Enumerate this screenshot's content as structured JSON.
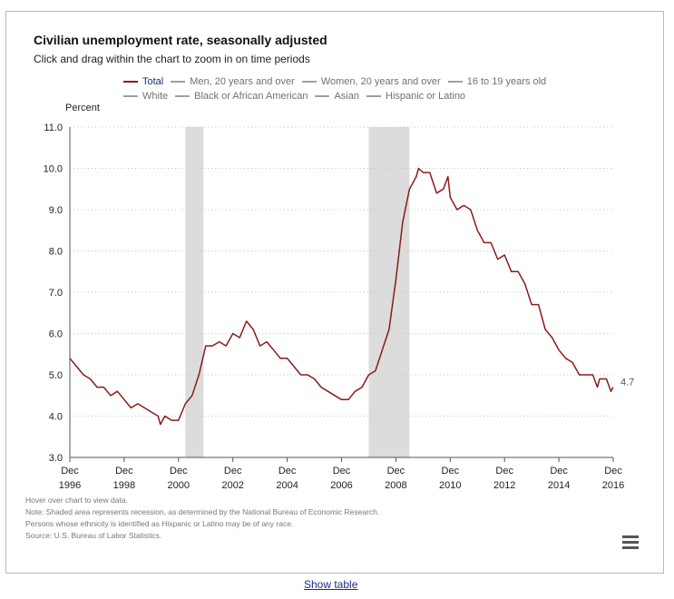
{
  "chart_data": {
    "type": "line",
    "title": "Civilian unemployment rate, seasonally adjusted",
    "subtitle": "Click and drag within the chart to zoom in on time periods",
    "ylabel": "Percent",
    "ylim": [
      3.0,
      11.0
    ],
    "yticks": [
      "3.0",
      "4.0",
      "5.0",
      "6.0",
      "7.0",
      "8.0",
      "9.0",
      "10.0",
      "11.0"
    ],
    "xticks": [
      {
        "month": "Dec",
        "year": "1996"
      },
      {
        "month": "Dec",
        "year": "1998"
      },
      {
        "month": "Dec",
        "year": "2000"
      },
      {
        "month": "Dec",
        "year": "2002"
      },
      {
        "month": "Dec",
        "year": "2004"
      },
      {
        "month": "Dec",
        "year": "2006"
      },
      {
        "month": "Dec",
        "year": "2008"
      },
      {
        "month": "Dec",
        "year": "2010"
      },
      {
        "month": "Dec",
        "year": "2012"
      },
      {
        "month": "Dec",
        "year": "2014"
      },
      {
        "month": "Dec",
        "year": "2016"
      }
    ],
    "grid": true,
    "legend_placement": "top",
    "legend": [
      {
        "name": "Total",
        "active": true
      },
      {
        "name": "Men, 20 years and over",
        "active": false
      },
      {
        "name": "Women, 20 years and over",
        "active": false
      },
      {
        "name": "16 to 19 years old",
        "active": false
      },
      {
        "name": "White",
        "active": false
      },
      {
        "name": "Black or African American",
        "active": false
      },
      {
        "name": "Asian",
        "active": false
      },
      {
        "name": "Hispanic or Latino",
        "active": false
      }
    ],
    "recessions": [
      {
        "start": "2001-03",
        "end": "2001-11"
      },
      {
        "start": "2007-12",
        "end": "2009-06"
      }
    ],
    "end_label": "4.7",
    "series": [
      {
        "name": "Total",
        "color": "#8b1a1a",
        "points": [
          [
            "1996-12",
            5.4
          ],
          [
            "1997-03",
            5.2
          ],
          [
            "1997-06",
            5.0
          ],
          [
            "1997-09",
            4.9
          ],
          [
            "1997-12",
            4.7
          ],
          [
            "1998-03",
            4.7
          ],
          [
            "1998-06",
            4.5
          ],
          [
            "1998-09",
            4.6
          ],
          [
            "1998-12",
            4.4
          ],
          [
            "1999-03",
            4.2
          ],
          [
            "1999-06",
            4.3
          ],
          [
            "1999-09",
            4.2
          ],
          [
            "1999-12",
            4.1
          ],
          [
            "2000-03",
            4.0
          ],
          [
            "2000-04",
            3.8
          ],
          [
            "2000-06",
            4.0
          ],
          [
            "2000-09",
            3.9
          ],
          [
            "2000-12",
            3.9
          ],
          [
            "2001-03",
            4.3
          ],
          [
            "2001-06",
            4.5
          ],
          [
            "2001-09",
            5.0
          ],
          [
            "2001-12",
            5.7
          ],
          [
            "2002-03",
            5.7
          ],
          [
            "2002-06",
            5.8
          ],
          [
            "2002-09",
            5.7
          ],
          [
            "2002-12",
            6.0
          ],
          [
            "2003-03",
            5.9
          ],
          [
            "2003-06",
            6.3
          ],
          [
            "2003-09",
            6.1
          ],
          [
            "2003-12",
            5.7
          ],
          [
            "2004-03",
            5.8
          ],
          [
            "2004-06",
            5.6
          ],
          [
            "2004-09",
            5.4
          ],
          [
            "2004-12",
            5.4
          ],
          [
            "2005-03",
            5.2
          ],
          [
            "2005-06",
            5.0
          ],
          [
            "2005-09",
            5.0
          ],
          [
            "2005-12",
            4.9
          ],
          [
            "2006-03",
            4.7
          ],
          [
            "2006-06",
            4.6
          ],
          [
            "2006-09",
            4.5
          ],
          [
            "2006-12",
            4.4
          ],
          [
            "2007-03",
            4.4
          ],
          [
            "2007-06",
            4.6
          ],
          [
            "2007-09",
            4.7
          ],
          [
            "2007-12",
            5.0
          ],
          [
            "2008-03",
            5.1
          ],
          [
            "2008-06",
            5.6
          ],
          [
            "2008-09",
            6.1
          ],
          [
            "2008-12",
            7.3
          ],
          [
            "2009-03",
            8.7
          ],
          [
            "2009-06",
            9.5
          ],
          [
            "2009-09",
            9.8
          ],
          [
            "2009-10",
            10.0
          ],
          [
            "2009-12",
            9.9
          ],
          [
            "2010-03",
            9.9
          ],
          [
            "2010-06",
            9.4
          ],
          [
            "2010-09",
            9.5
          ],
          [
            "2010-11",
            9.8
          ],
          [
            "2010-12",
            9.3
          ],
          [
            "2011-03",
            9.0
          ],
          [
            "2011-06",
            9.1
          ],
          [
            "2011-09",
            9.0
          ],
          [
            "2011-12",
            8.5
          ],
          [
            "2012-03",
            8.2
          ],
          [
            "2012-06",
            8.2
          ],
          [
            "2012-09",
            7.8
          ],
          [
            "2012-12",
            7.9
          ],
          [
            "2013-03",
            7.5
          ],
          [
            "2013-06",
            7.5
          ],
          [
            "2013-09",
            7.2
          ],
          [
            "2013-12",
            6.7
          ],
          [
            "2014-03",
            6.7
          ],
          [
            "2014-06",
            6.1
          ],
          [
            "2014-09",
            5.9
          ],
          [
            "2014-12",
            5.6
          ],
          [
            "2015-03",
            5.4
          ],
          [
            "2015-06",
            5.3
          ],
          [
            "2015-09",
            5.0
          ],
          [
            "2015-12",
            5.0
          ],
          [
            "2016-03",
            5.0
          ],
          [
            "2016-05",
            4.7
          ],
          [
            "2016-06",
            4.9
          ],
          [
            "2016-09",
            4.9
          ],
          [
            "2016-11",
            4.6
          ],
          [
            "2016-12",
            4.7
          ]
        ]
      }
    ]
  },
  "notes": [
    "Hover over chart to view data.",
    "Note: Shaded area represents recession, as determined by the National Bureau of Economic Research.",
    "Persons whose ethnicity is identified as Hispanic or Latino may be of any race.",
    "Source: U.S. Bureau of Labor Statistics."
  ],
  "footer": {
    "show_table_label": "Show table"
  },
  "icons": {
    "menu": "hamburger-menu-icon"
  }
}
